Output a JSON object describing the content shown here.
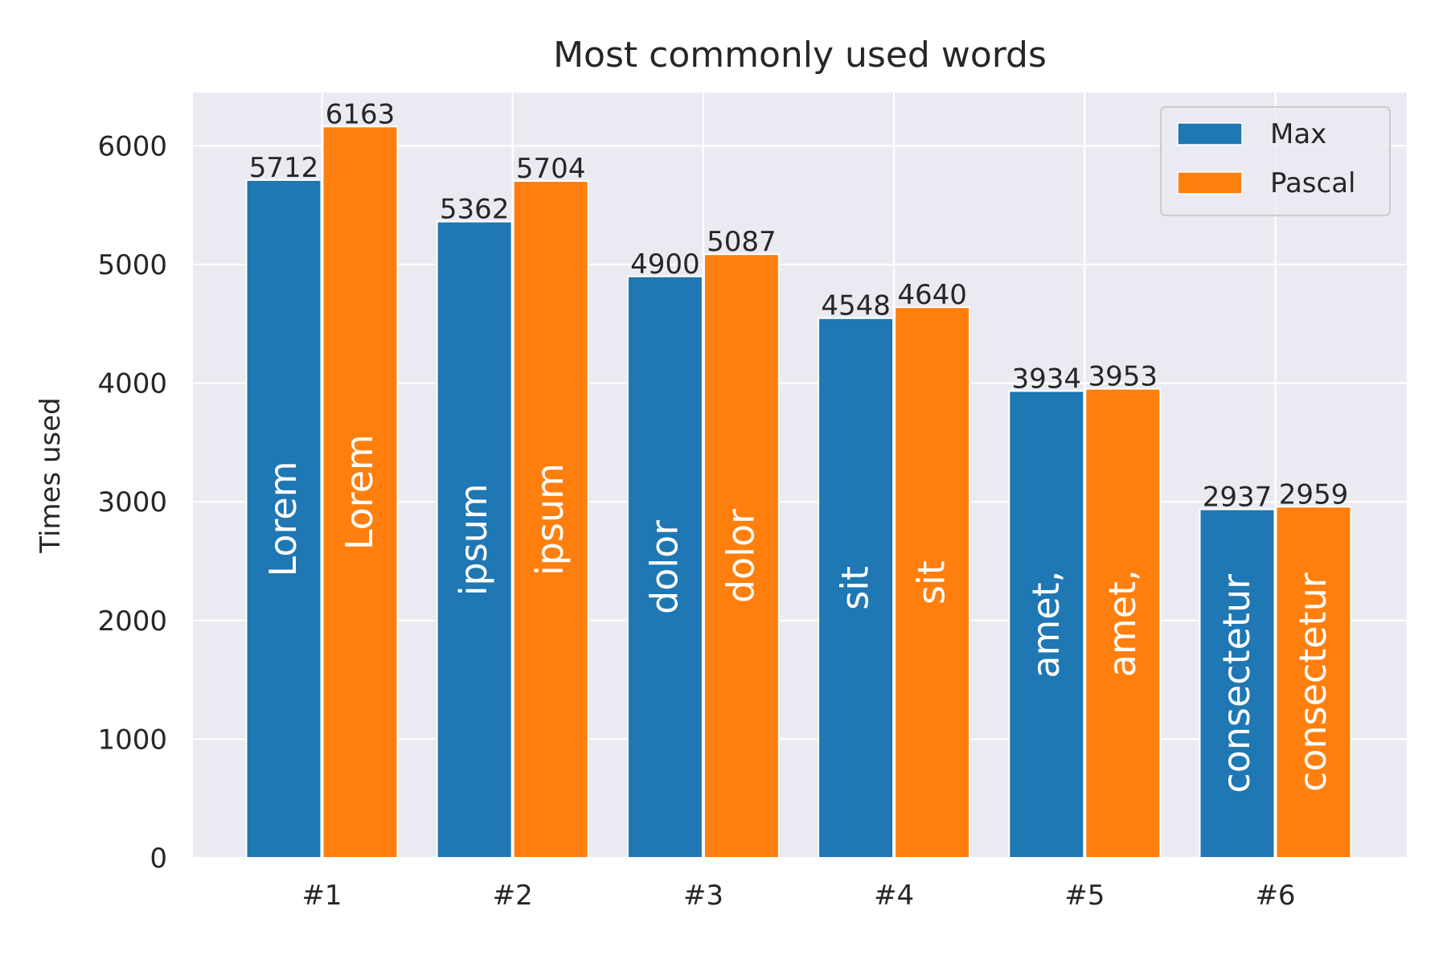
{
  "chart_data": {
    "type": "bar",
    "title": "Most commonly used words",
    "xlabel": "",
    "ylabel": "Times used",
    "categories": [
      "#1",
      "#2",
      "#3",
      "#4",
      "#5",
      "#6"
    ],
    "series": [
      {
        "name": "Max",
        "color": "#1f77b4",
        "values": [
          5712,
          5362,
          4900,
          4548,
          3934,
          2937
        ],
        "bar_labels": [
          "Lorem",
          "ipsum",
          "dolor",
          "sit",
          "amet,",
          "consectetur"
        ]
      },
      {
        "name": "Pascal",
        "color": "#ff7f0e",
        "values": [
          6163,
          5704,
          5087,
          4640,
          3953,
          2959
        ],
        "bar_labels": [
          "Lorem",
          "ipsum",
          "dolor",
          "sit",
          "amet,",
          "consectetur"
        ]
      }
    ],
    "ylim": [
      0,
      6450
    ],
    "yticks": [
      0,
      1000,
      2000,
      3000,
      4000,
      5000,
      6000
    ],
    "grid": true,
    "background": "#eaeaf2",
    "legend_position": "top-right"
  }
}
